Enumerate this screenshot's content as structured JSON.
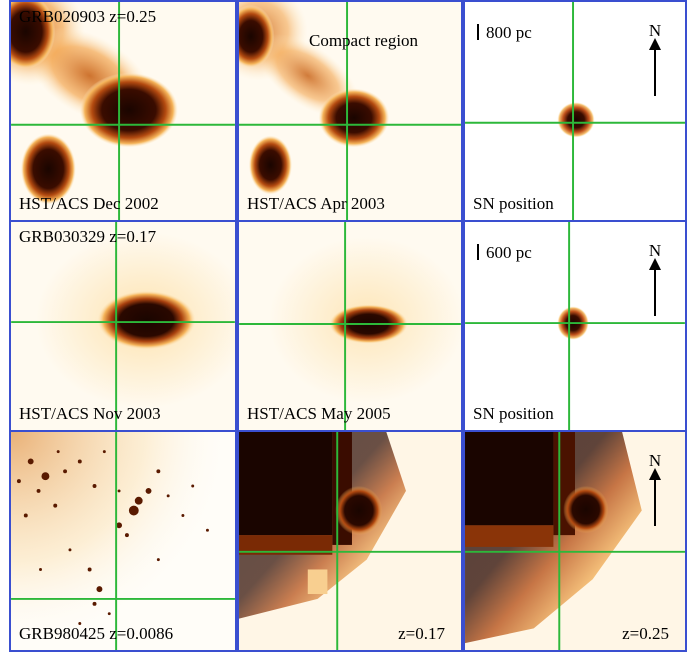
{
  "colors": {
    "frame": "#3a4fd0",
    "crosshair": "#2db83a",
    "dark": "#1a0500",
    "mid": "#b34a10",
    "light": "#f5b45a",
    "pale": "#fde8c0"
  },
  "row1": {
    "p1": {
      "title": "GRB020903 z=0.25",
      "caption": "HST/ACS Dec 2002"
    },
    "p2": {
      "title": "Compact region",
      "caption": "HST/ACS Apr 2003"
    },
    "p3": {
      "scale": "800 pc",
      "caption": "SN position",
      "north": "N"
    }
  },
  "row2": {
    "p1": {
      "title": "GRB030329 z=0.17",
      "caption": "HST/ACS Nov 2003"
    },
    "p2": {
      "caption": "HST/ACS May 2005"
    },
    "p3": {
      "scale": "600 pc",
      "caption": "SN position",
      "north": "N"
    }
  },
  "row3": {
    "p1": {
      "caption": "GRB980425 z=0.0086"
    },
    "p2": {
      "caption": "z=0.17"
    },
    "p3": {
      "caption": "z=0.25",
      "north": "N"
    }
  }
}
